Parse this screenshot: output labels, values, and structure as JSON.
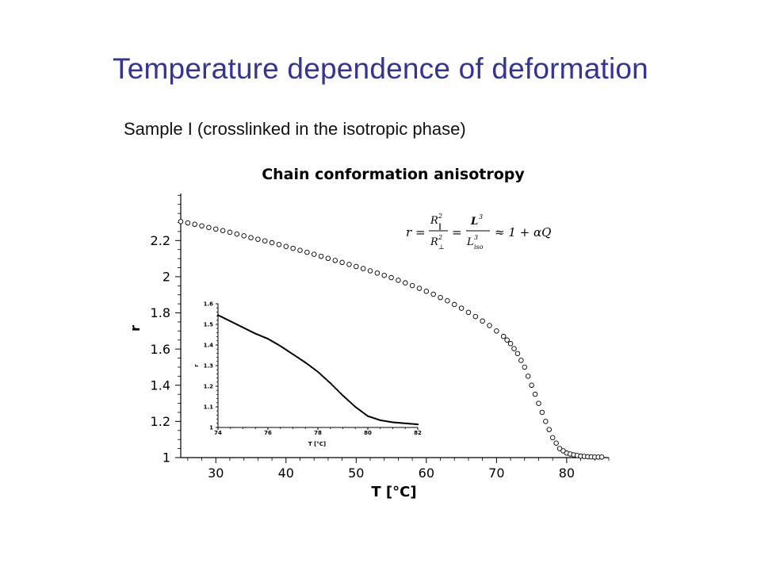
{
  "slide": {
    "title": "Temperature dependence of deformation",
    "subtitle": "Sample I (crosslinked in the isotropic phase)"
  },
  "chart_data": [
    {
      "type": "scatter",
      "title": "Chain conformation anisotropy",
      "xlabel": "T [°C]",
      "ylabel": "r",
      "xlim": [
        25,
        86
      ],
      "ylim": [
        1,
        2.46
      ],
      "xticks": [
        30,
        40,
        50,
        60,
        70,
        80
      ],
      "xtick_labels": [
        "30",
        "40",
        "50",
        "60",
        "70",
        "80"
      ],
      "yticks": [
        1,
        1.2,
        1.4,
        1.6,
        1.8,
        2,
        2.2
      ],
      "ytick_labels": [
        "1",
        "1.2",
        "1.4",
        "1.6",
        "1.8",
        "2",
        "2.2"
      ],
      "marker": "open-circle",
      "annotation": "r = R∥² / R⊥² = L³ / L³iso ≈ 1 + αQ",
      "series": [
        {
          "x": [
            25,
            27,
            29,
            31,
            33,
            35,
            37,
            39,
            41,
            43,
            45,
            47,
            49,
            51,
            53,
            55,
            57,
            59,
            61,
            63,
            65,
            67,
            69,
            71,
            72,
            73,
            74,
            75,
            76,
            77,
            78,
            79,
            80,
            81,
            82,
            83,
            84,
            85
          ],
          "y": [
            2.305,
            2.29,
            2.272,
            2.255,
            2.236,
            2.216,
            2.198,
            2.178,
            2.157,
            2.135,
            2.113,
            2.09,
            2.068,
            2.045,
            2.02,
            1.995,
            1.966,
            1.936,
            1.903,
            1.867,
            1.826,
            1.78,
            1.73,
            1.67,
            1.63,
            1.575,
            1.5,
            1.4,
            1.3,
            1.2,
            1.11,
            1.05,
            1.025,
            1.015,
            1.008,
            1.005,
            1.003,
            1.003
          ]
        }
      ]
    },
    {
      "type": "scatter",
      "title": "",
      "xlabel": "T [°C]",
      "ylabel": "r",
      "xlim": [
        74,
        82
      ],
      "ylim": [
        1,
        1.6
      ],
      "xticks": [
        74,
        76,
        78,
        80,
        82
      ],
      "xtick_labels": [
        "74",
        "76",
        "78",
        "80",
        "82"
      ],
      "yticks": [
        1,
        1.1,
        1.2,
        1.3,
        1.4,
        1.5,
        1.6
      ],
      "ytick_labels": [
        "1",
        "1.1",
        "1.2",
        "1.3",
        "1.4",
        "1.5",
        "1.6"
      ],
      "marker": "filled-dot",
      "series": [
        {
          "x": [
            74,
            74.5,
            75,
            75.5,
            76,
            76.5,
            77,
            77.5,
            78,
            78.5,
            79,
            79.5,
            80,
            80.5,
            81,
            81.5,
            82
          ],
          "y": [
            1.545,
            1.515,
            1.485,
            1.455,
            1.43,
            1.395,
            1.355,
            1.315,
            1.27,
            1.215,
            1.155,
            1.1,
            1.055,
            1.035,
            1.025,
            1.02,
            1.015
          ]
        }
      ]
    }
  ]
}
